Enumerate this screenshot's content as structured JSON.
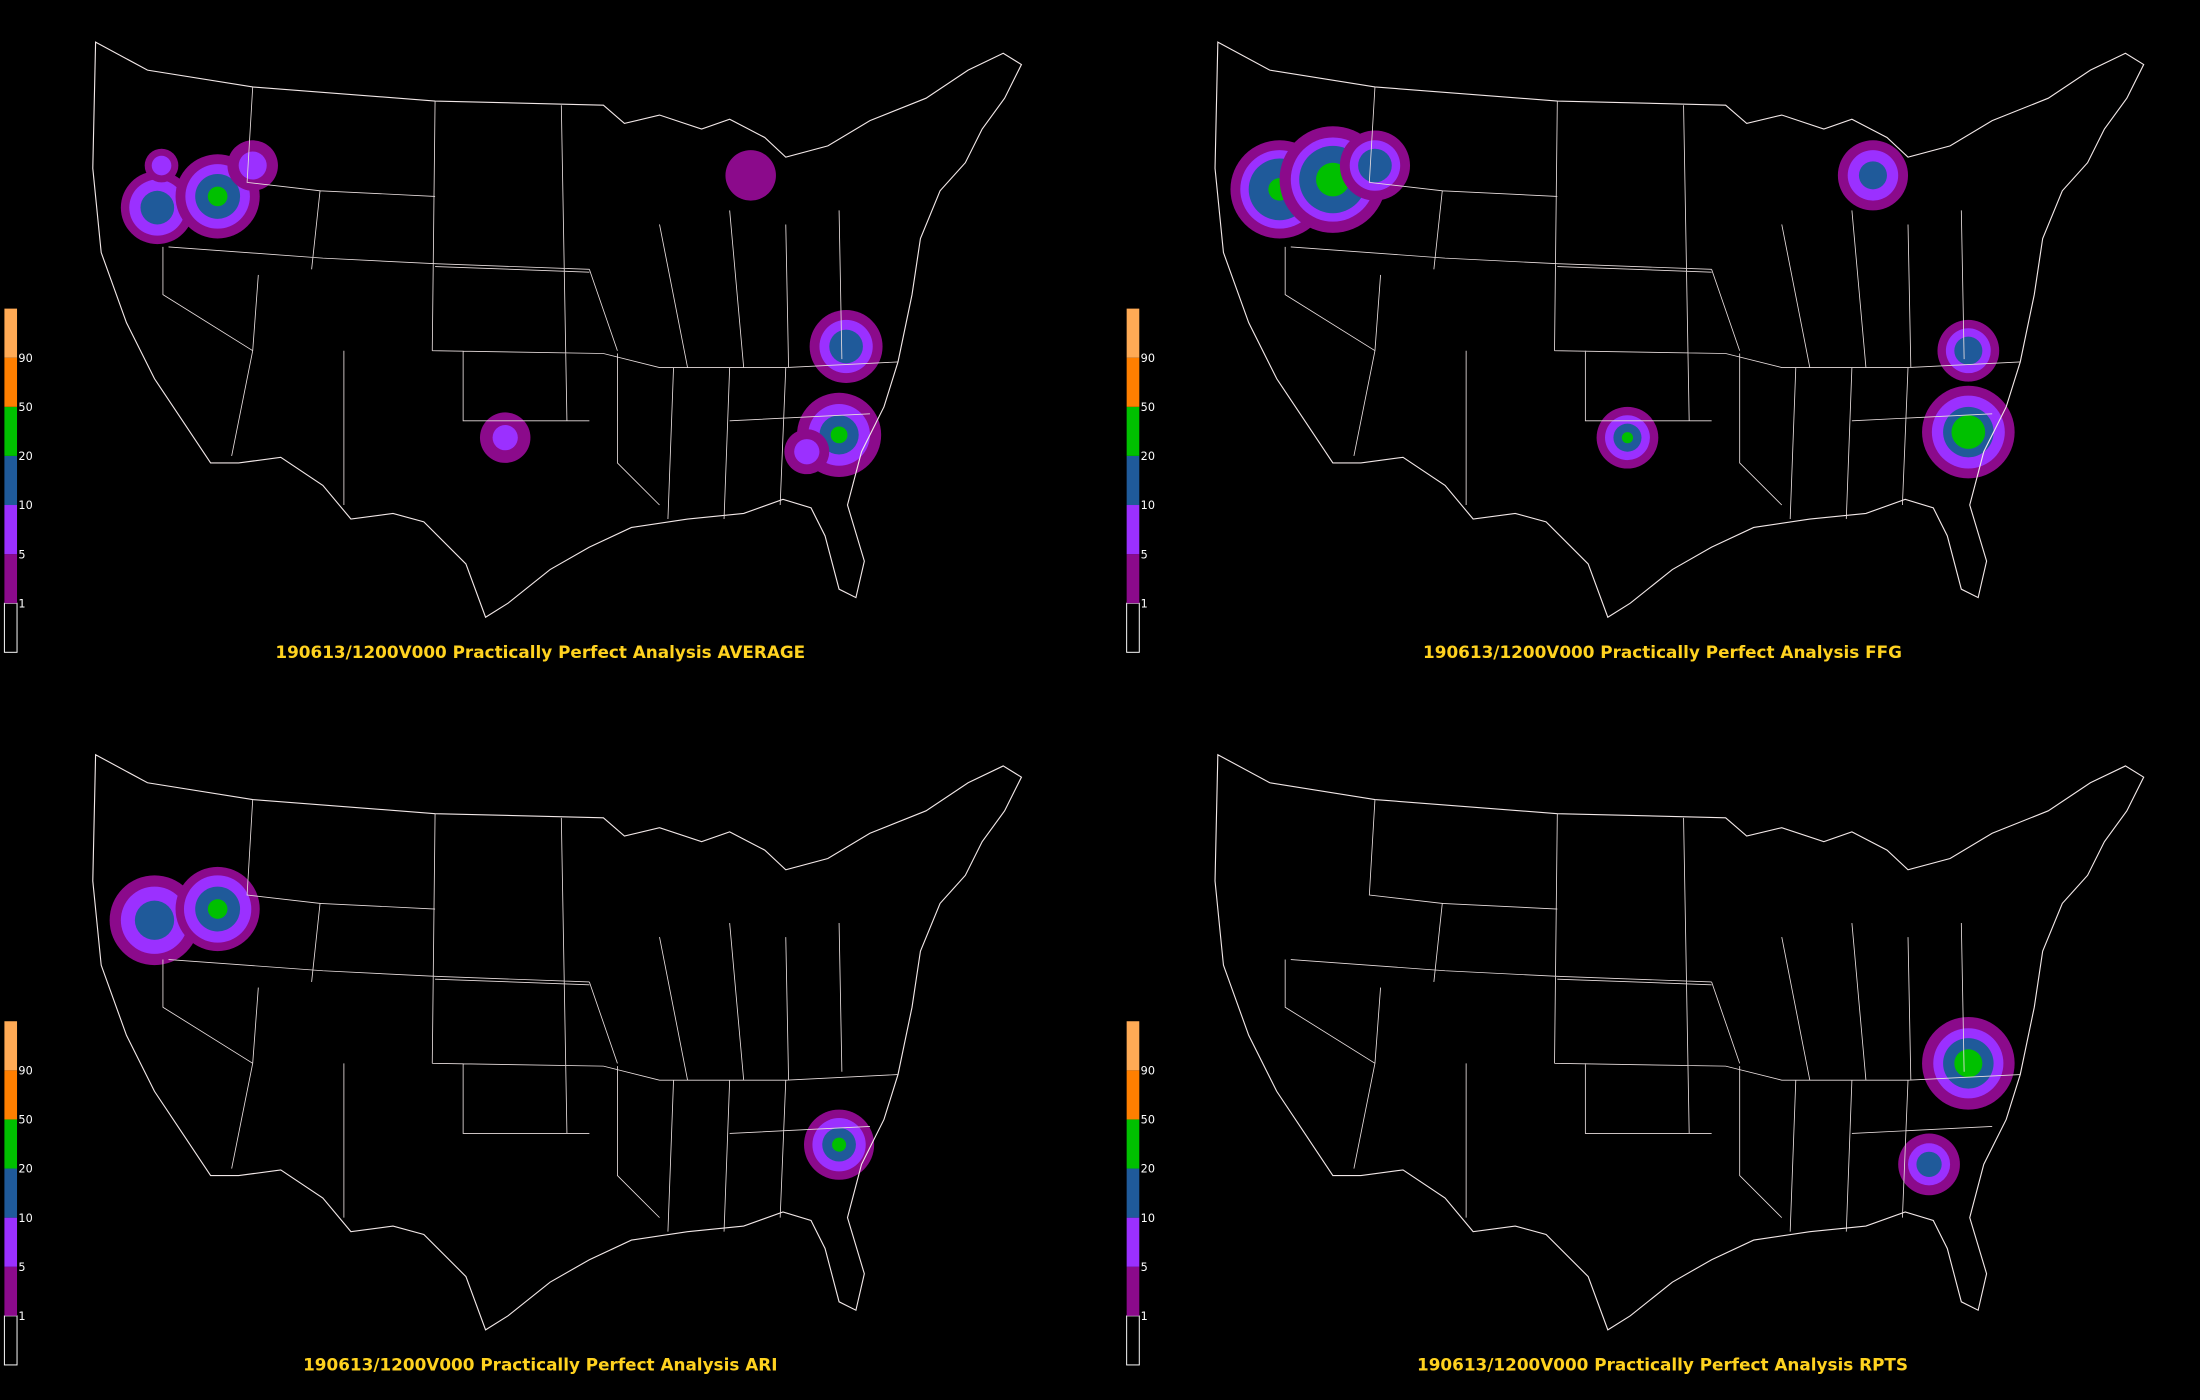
{
  "panels": [
    {
      "title": "190613/1200V000 Practically Perfect Analysis AVERAGE"
    },
    {
      "title": "190613/1200V000 Practically Perfect Analysis FFG"
    },
    {
      "title": "190613/1200V000 Practically Perfect Analysis ARI"
    },
    {
      "title": "190613/1200V000 Practically Perfect Analysis RPTS"
    }
  ],
  "legend": {
    "labels": [
      "1",
      "5",
      "10",
      "20",
      "50",
      "90"
    ]
  }
}
